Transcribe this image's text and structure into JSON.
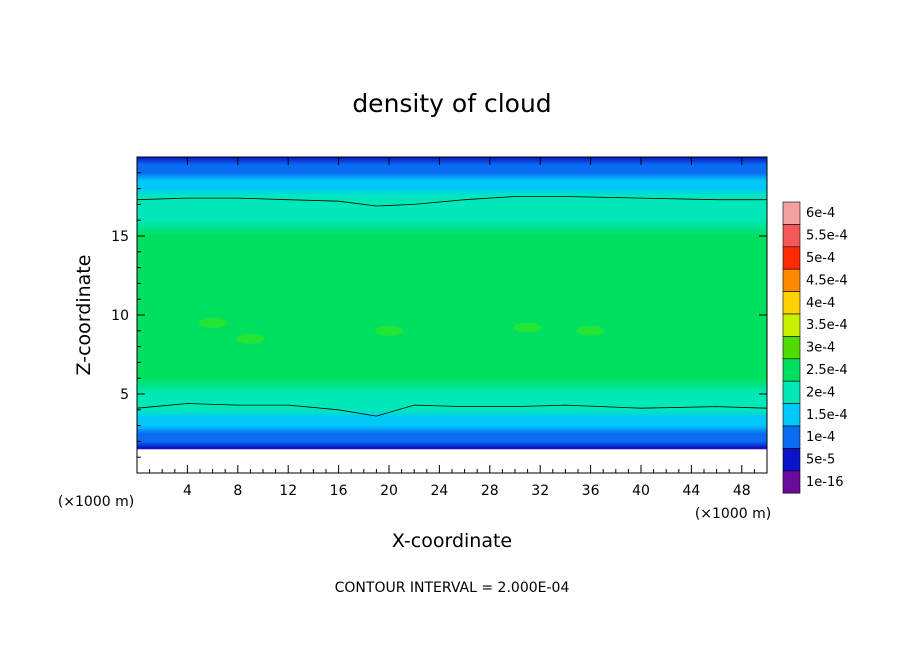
{
  "chart_data": {
    "type": "heatmap",
    "title": "density of cloud",
    "xlabel": "X-coordinate",
    "ylabel": "Z-coordinate",
    "x_unit": "(×1000 m)",
    "z_unit": "(×1000 m)",
    "xlim": [
      0,
      50
    ],
    "ylim": [
      0,
      20
    ],
    "x_ticks": [
      "4",
      "8",
      "12",
      "16",
      "20",
      "24",
      "28",
      "32",
      "36",
      "40",
      "44",
      "48"
    ],
    "y_ticks": [
      "5",
      "10",
      "15"
    ],
    "colorbar_labels": [
      "6e-4",
      "5.5e-4",
      "5e-4",
      "4.5e-4",
      "4e-4",
      "3.5e-4",
      "3e-4",
      "2.5e-4",
      "2e-4",
      "1.5e-4",
      "1e-4",
      "5e-5",
      "1e-16"
    ],
    "colorbar_colors": [
      "#f2a0a0",
      "#f25a5a",
      "#ff2a00",
      "#ff8a00",
      "#ffd200",
      "#c8f000",
      "#50dc00",
      "#00e060",
      "#00e8b8",
      "#00c8f8",
      "#0a6cf0",
      "#0a14c8",
      "#6a0a9a"
    ],
    "contour_interval_text": "CONTOUR INTERVAL = 2.000E-04",
    "profile_z": [
      1.2,
      1.6,
      2,
      2.5,
      3,
      3.5,
      4,
      4.5,
      5,
      6,
      7,
      8,
      9,
      10,
      11,
      12,
      13,
      14,
      15,
      16,
      17,
      17.5,
      18,
      18.5,
      19,
      19.5,
      20
    ],
    "profile_density": [
      0,
      5e-05,
      0.0001,
      0.00013,
      0.00016,
      0.00018,
      0.0002,
      0.00022,
      0.00024,
      0.00026,
      0.000275,
      0.000285,
      0.000295,
      0.0003,
      0.0003,
      0.000295,
      0.000285,
      0.00027,
      0.000255,
      0.00024,
      0.00022,
      0.000205,
      0.000185,
      0.00016,
      0.000135,
      0.00011,
      8e-05
    ],
    "contour_upper_z": [
      17.3,
      17.4,
      17.4,
      17.3,
      17.2,
      16.9,
      17.0,
      17.3,
      17.5,
      17.5,
      17.4,
      17.3,
      17.3
    ],
    "contour_lower_z": [
      4.1,
      4.4,
      4.3,
      4.3,
      4.0,
      3.6,
      4.3,
      4.2,
      4.2,
      4.3,
      4.1,
      4.2,
      4.1
    ],
    "contour_x": [
      0,
      4,
      8,
      12,
      16,
      19,
      22,
      26,
      30,
      34,
      40,
      46,
      50
    ],
    "cloud_base_z": 1.5
  }
}
